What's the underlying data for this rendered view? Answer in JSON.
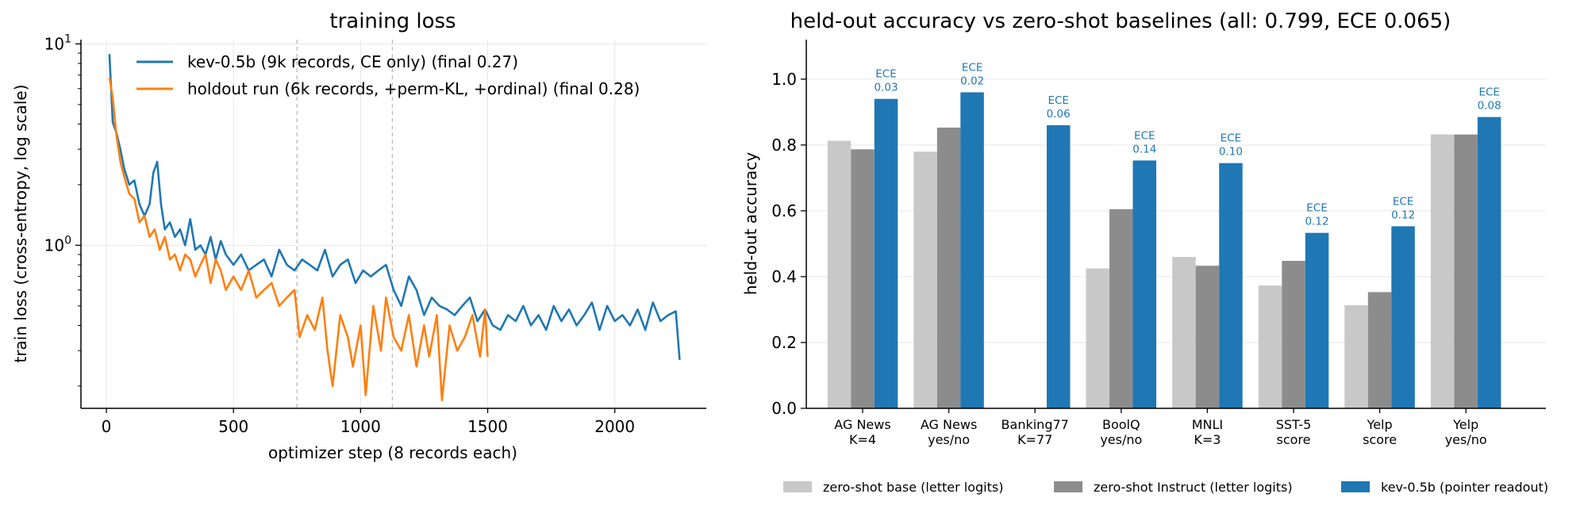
{
  "chart_data": [
    {
      "type": "line",
      "title": "training loss",
      "xlabel": "optimizer step (8 records each)",
      "ylabel": "train loss (cross-entropy, log scale)",
      "yscale": "log",
      "xlim": [
        -100,
        2360
      ],
      "ylim": [
        0.155,
        10.5
      ],
      "xticks": [
        0,
        500,
        1000,
        1500,
        2000
      ],
      "yticks": [
        {
          "value": 1,
          "label": "10^0"
        },
        {
          "value": 10,
          "label": "10^1"
        }
      ],
      "grid": true,
      "legend_position": "top-right",
      "vlines": [
        750,
        1125
      ],
      "series": [
        {
          "name": "kev-0.5b (9k records, CE only)  (final 0.27)",
          "color": "#1f77b4",
          "x": [
            12,
            25,
            40,
            55,
            70,
            90,
            110,
            130,
            150,
            170,
            185,
            200,
            215,
            230,
            250,
            270,
            290,
            310,
            330,
            350,
            370,
            390,
            410,
            430,
            450,
            470,
            500,
            530,
            560,
            590,
            620,
            650,
            680,
            710,
            740,
            770,
            800,
            830,
            860,
            890,
            920,
            950,
            980,
            1010,
            1040,
            1070,
            1100,
            1130,
            1160,
            1190,
            1220,
            1250,
            1280,
            1310,
            1340,
            1370,
            1400,
            1430,
            1460,
            1490,
            1520,
            1550,
            1580,
            1610,
            1640,
            1670,
            1700,
            1730,
            1760,
            1790,
            1820,
            1850,
            1880,
            1910,
            1940,
            1970,
            2000,
            2030,
            2060,
            2090,
            2120,
            2150,
            2180,
            2210,
            2240,
            2255
          ],
          "y": [
            8.9,
            4.1,
            3.6,
            3.0,
            2.4,
            2.0,
            2.1,
            1.6,
            1.4,
            1.6,
            2.3,
            2.6,
            1.6,
            1.2,
            1.3,
            1.1,
            1.2,
            1.0,
            1.35,
            0.95,
            1.0,
            0.9,
            1.1,
            0.85,
            1.05,
            0.9,
            0.8,
            0.9,
            0.75,
            0.8,
            0.85,
            0.7,
            0.95,
            0.8,
            0.75,
            0.85,
            0.8,
            0.75,
            0.95,
            0.7,
            0.8,
            0.85,
            0.65,
            0.75,
            0.7,
            0.75,
            0.8,
            0.6,
            0.5,
            0.7,
            0.6,
            0.45,
            0.55,
            0.5,
            0.48,
            0.45,
            0.5,
            0.55,
            0.42,
            0.48,
            0.4,
            0.38,
            0.45,
            0.42,
            0.5,
            0.4,
            0.45,
            0.38,
            0.5,
            0.42,
            0.48,
            0.4,
            0.45,
            0.52,
            0.38,
            0.5,
            0.42,
            0.45,
            0.4,
            0.48,
            0.38,
            0.52,
            0.42,
            0.45,
            0.47,
            0.27
          ]
        },
        {
          "name": "holdout run (6k records, +perm-KL, +ordinal)  (final 0.28)",
          "color": "#ff7f0e",
          "x": [
            12,
            25,
            40,
            55,
            70,
            90,
            110,
            130,
            150,
            170,
            190,
            210,
            230,
            250,
            270,
            290,
            310,
            330,
            350,
            370,
            390,
            410,
            430,
            450,
            470,
            500,
            530,
            560,
            590,
            620,
            650,
            680,
            710,
            740,
            760,
            790,
            820,
            850,
            870,
            890,
            920,
            950,
            970,
            1000,
            1020,
            1050,
            1080,
            1100,
            1130,
            1160,
            1190,
            1220,
            1250,
            1270,
            1300,
            1320,
            1350,
            1380,
            1410,
            1440,
            1470,
            1490,
            1500
          ],
          "y": [
            6.8,
            5.4,
            3.5,
            2.6,
            2.2,
            1.8,
            1.7,
            1.3,
            1.4,
            1.1,
            1.2,
            0.95,
            1.1,
            0.85,
            0.9,
            0.75,
            0.9,
            0.85,
            0.7,
            0.8,
            0.9,
            0.65,
            0.85,
            0.75,
            0.6,
            0.7,
            0.6,
            0.75,
            0.55,
            0.6,
            0.65,
            0.5,
            0.55,
            0.6,
            0.35,
            0.45,
            0.38,
            0.55,
            0.3,
            0.2,
            0.45,
            0.35,
            0.25,
            0.4,
            0.18,
            0.5,
            0.3,
            0.55,
            0.35,
            0.3,
            0.45,
            0.25,
            0.4,
            0.28,
            0.45,
            0.17,
            0.4,
            0.3,
            0.35,
            0.45,
            0.28,
            0.48,
            0.28
          ]
        }
      ]
    },
    {
      "type": "bar",
      "title": "held-out accuracy vs zero-shot baselines  (all: 0.799, ECE 0.065)",
      "xlabel": "",
      "ylabel": "held-out accuracy",
      "ylim": [
        0,
        1.12
      ],
      "yticks": [
        0.0,
        0.2,
        0.4,
        0.6,
        0.8,
        1.0
      ],
      "grid": true,
      "legend_position": "bottom-center",
      "categories": [
        "AG News\nK=4",
        "AG News\nyes/no",
        "Banking77\nK=77",
        "BoolQ\nyes/no",
        "MNLI\nK=3",
        "SST-5\nscore",
        "Yelp\nscore",
        "Yelp\nyes/no"
      ],
      "series": [
        {
          "name": "zero-shot base (letter logits)",
          "color": "#c8c8c8",
          "values": [
            0.813,
            0.78,
            null,
            0.425,
            0.46,
            0.373,
            0.313,
            0.832
          ]
        },
        {
          "name": "zero-shot Instruct (letter logits)",
          "color": "#8c8c8c",
          "values": [
            0.787,
            0.853,
            null,
            0.605,
            0.433,
            0.448,
            0.353,
            0.832
          ]
        },
        {
          "name": "kev-0.5b (pointer readout)",
          "color": "#1f77b4",
          "values": [
            0.94,
            0.96,
            0.86,
            0.753,
            0.745,
            0.533,
            0.553,
            0.885
          ]
        }
      ],
      "annotations": {
        "series": "kev-0.5b (pointer readout)",
        "prefix": "ECE",
        "values": [
          "0.03",
          "0.02",
          "0.06",
          "0.14",
          "0.10",
          "0.12",
          "0.12",
          "0.08"
        ]
      }
    }
  ]
}
